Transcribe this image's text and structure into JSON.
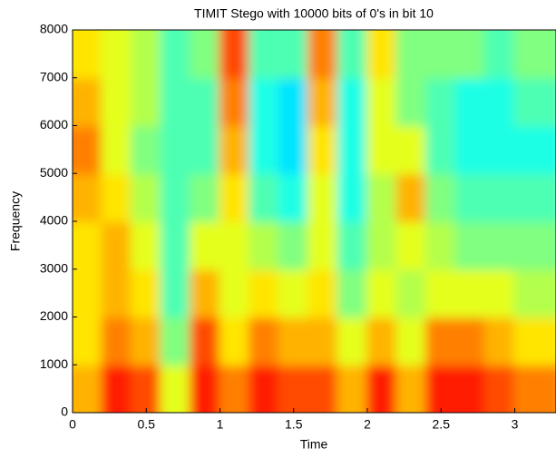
{
  "chart_data": {
    "type": "heatmap",
    "title": "TIMIT Stego with 10000 bits of 0's in bit 10",
    "x_label": "Time",
    "y_label": "Frequency",
    "colormap": "jet",
    "x": [
      0.1,
      0.3,
      0.5,
      0.7,
      0.9,
      1.1,
      1.3,
      1.5,
      1.7,
      1.9,
      2.1,
      2.3,
      2.5,
      2.7,
      2.9,
      3.1
    ],
    "y": [
      500,
      1500,
      2500,
      3500,
      4500,
      5500,
      6500,
      7500
    ],
    "values": [
      [
        0.7,
        0.65,
        0.65,
        0.65,
        0.7,
        0.75,
        0.7,
        0.65
      ],
      [
        0.85,
        0.75,
        0.7,
        0.7,
        0.65,
        0.6,
        0.6,
        0.6
      ],
      [
        0.8,
        0.7,
        0.65,
        0.6,
        0.55,
        0.5,
        0.55,
        0.55
      ],
      [
        0.6,
        0.5,
        0.45,
        0.45,
        0.45,
        0.45,
        0.45,
        0.45
      ],
      [
        0.85,
        0.8,
        0.7,
        0.6,
        0.5,
        0.45,
        0.45,
        0.5
      ],
      [
        0.75,
        0.65,
        0.6,
        0.6,
        0.65,
        0.7,
        0.75,
        0.8
      ],
      [
        0.85,
        0.75,
        0.65,
        0.55,
        0.45,
        0.4,
        0.4,
        0.45
      ],
      [
        0.8,
        0.7,
        0.6,
        0.5,
        0.4,
        0.35,
        0.35,
        0.45
      ],
      [
        0.8,
        0.7,
        0.65,
        0.6,
        0.6,
        0.65,
        0.7,
        0.75
      ],
      [
        0.7,
        0.6,
        0.5,
        0.45,
        0.4,
        0.4,
        0.4,
        0.45
      ],
      [
        0.85,
        0.7,
        0.6,
        0.55,
        0.55,
        0.6,
        0.6,
        0.65
      ],
      [
        0.7,
        0.6,
        0.55,
        0.6,
        0.7,
        0.6,
        0.5,
        0.5
      ],
      [
        0.85,
        0.75,
        0.6,
        0.55,
        0.5,
        0.45,
        0.45,
        0.5
      ],
      [
        0.85,
        0.75,
        0.6,
        0.5,
        0.45,
        0.4,
        0.4,
        0.5
      ],
      [
        0.8,
        0.7,
        0.6,
        0.5,
        0.45,
        0.4,
        0.4,
        0.45
      ],
      [
        0.75,
        0.65,
        0.55,
        0.5,
        0.45,
        0.4,
        0.45,
        0.5
      ]
    ],
    "xlim": [
      0,
      3.28
    ],
    "ylim": [
      0,
      8000
    ],
    "xticks": [
      0,
      0.5,
      1,
      1.5,
      2,
      2.5,
      3
    ],
    "yticks": [
      0,
      1000,
      2000,
      3000,
      4000,
      5000,
      6000,
      7000,
      8000
    ]
  }
}
